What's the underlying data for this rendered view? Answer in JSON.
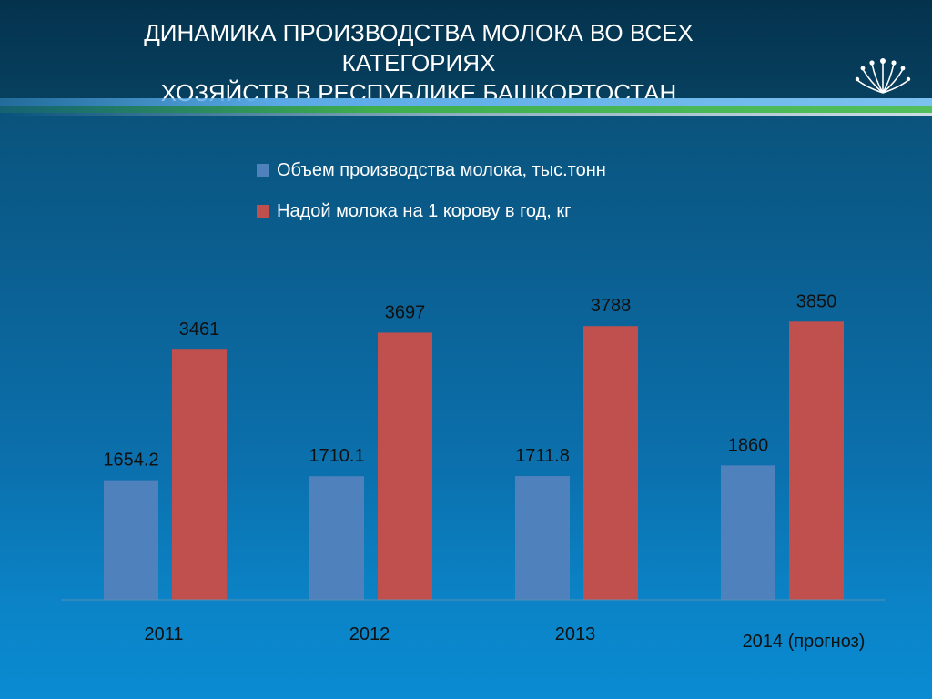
{
  "title": {
    "line1": "ДИНАМИКА ПРОИЗВОДСТВА МОЛОКА ВО ВСЕХ КАТЕГОРИЯХ",
    "line2": "ХОЗЯЙСТВ В РЕСПУБЛИКЕ  БАШКОРТОСТАН"
  },
  "logo_icon": "kurai-flower-icon",
  "colors": {
    "series_volume": "#4f81bd",
    "series_yield": "#c0504d",
    "background": "#0b6296"
  },
  "chart_data": {
    "type": "bar",
    "categories": [
      "2011",
      "2012",
      "2013",
      "2014 (прогноз)"
    ],
    "series": [
      {
        "name": "Объем производства молока, тыс.тонн",
        "values": [
          1654.2,
          1710.1,
          1711.8,
          1860
        ],
        "labels": [
          "1654.2",
          "1710.1",
          "1711.8",
          "1860"
        ],
        "color": "#4f81bd"
      },
      {
        "name": "Надой молока на 1 корову в год, кг",
        "values": [
          3461,
          3697,
          3788,
          3850
        ],
        "labels": [
          "3461",
          "3697",
          "3788",
          "3850"
        ],
        "color": "#c0504d"
      }
    ],
    "ylim": [
      0,
      5000
    ],
    "legend_position": "top",
    "grid": false
  }
}
